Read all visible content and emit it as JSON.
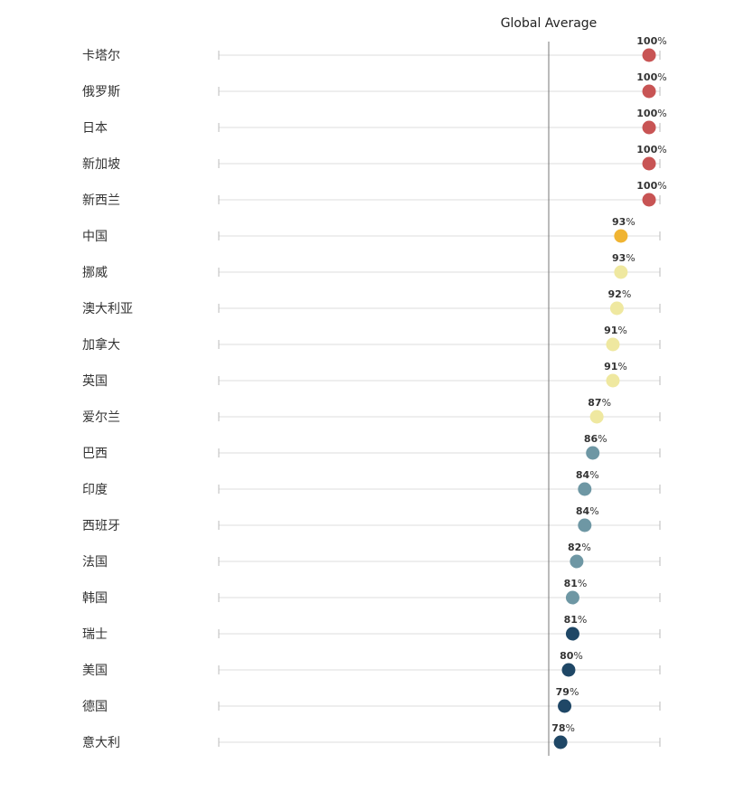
{
  "chart_data": {
    "type": "dot",
    "title": "",
    "reference_line": {
      "label": "Global Average",
      "value": 75
    },
    "xlim": [
      0,
      100
    ],
    "value_suffix": "%",
    "categories": [
      "卡塔尔",
      "俄罗斯",
      "日本",
      "新加坡",
      "新西兰",
      "中国",
      "挪威",
      "澳大利亚",
      "加拿大",
      "英国",
      "爱尔兰",
      "巴西",
      "印度",
      "西班牙",
      "法国",
      "韩国",
      "瑞士",
      "美国",
      "德国",
      "意大利"
    ],
    "values": [
      100,
      100,
      100,
      100,
      100,
      93,
      93,
      92,
      91,
      91,
      87,
      86,
      84,
      84,
      82,
      81,
      81,
      80,
      79,
      78
    ],
    "colors": [
      "#c85454",
      "#c85454",
      "#c85454",
      "#c85454",
      "#c85454",
      "#f0b432",
      "#efe8a0",
      "#efe8a0",
      "#efe8a0",
      "#efe8a0",
      "#efe8a0",
      "#6e97a4",
      "#6e97a4",
      "#6e97a4",
      "#6e97a4",
      "#6e97a4",
      "#1f4766",
      "#1f4766",
      "#1f4766",
      "#1f4766"
    ],
    "grid": true
  }
}
